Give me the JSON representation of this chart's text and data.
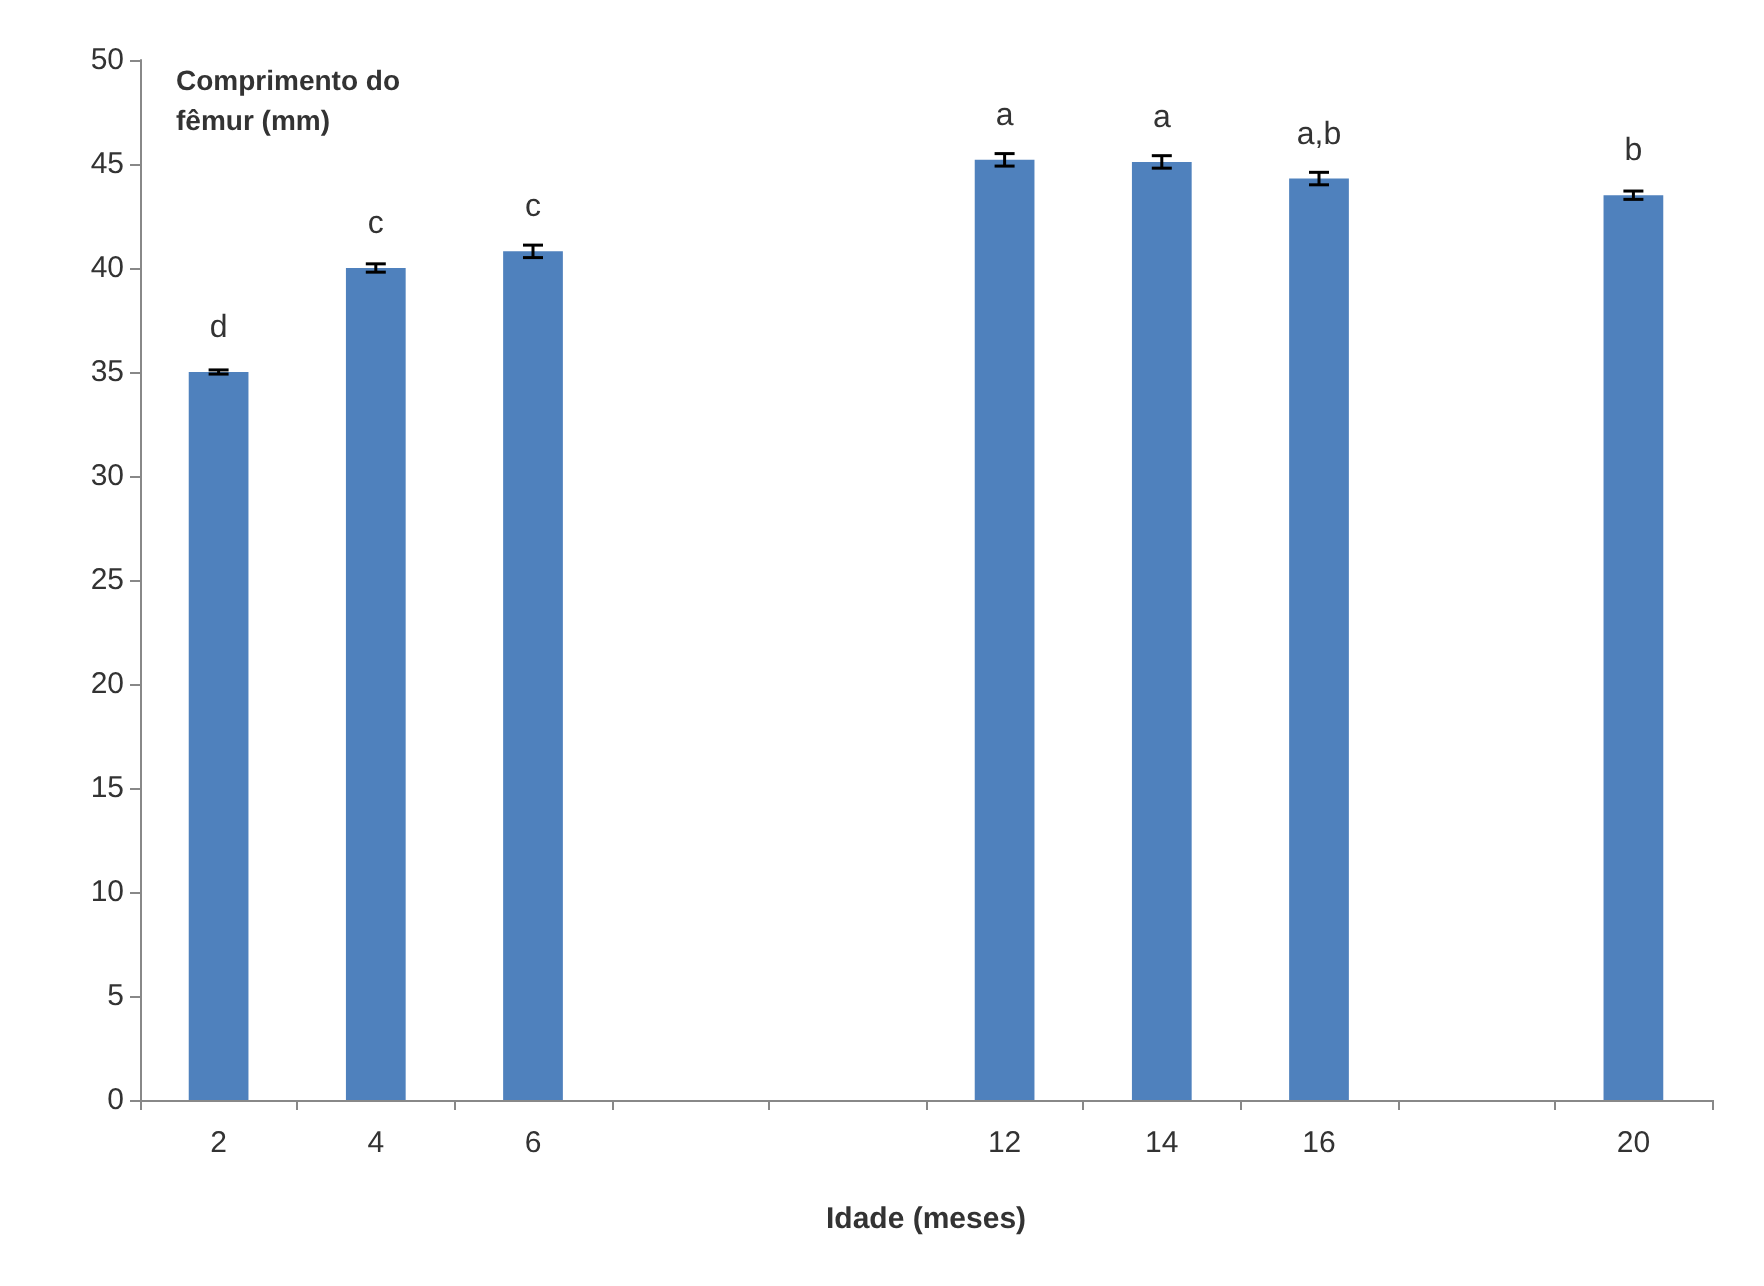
{
  "chart_data": {
    "type": "bar",
    "ylabel": "Comprimento do\nfêmur (mm)",
    "xlabel": "Idade (meses)",
    "categories": [
      "2",
      "4",
      "6",
      null,
      null,
      "12",
      "14",
      "16",
      null,
      "20"
    ],
    "series": [
      {
        "color": "#4f81bd",
        "values": [
          35,
          40,
          40.8,
          null,
          null,
          45.2,
          45.1,
          44.3,
          null,
          43.5
        ],
        "errors": [
          0.1,
          0.2,
          0.3,
          null,
          null,
          0.3,
          0.3,
          0.3,
          null,
          0.2
        ]
      }
    ],
    "ylim": [
      0,
      50
    ],
    "yticks": [
      0,
      5,
      10,
      15,
      20,
      25,
      30,
      35,
      40,
      45,
      50
    ],
    "grid": false,
    "annotations": [
      {
        "text": "d",
        "x": "2",
        "y": 35
      },
      {
        "text": "c",
        "x": "4",
        "y": 40
      },
      {
        "text": "c",
        "x": "6",
        "y": 40.8
      },
      {
        "text": "a",
        "x": "12",
        "y": 45.2
      },
      {
        "text": "a",
        "x": "14",
        "y": 45.1
      },
      {
        "text": "a,b",
        "x": "16",
        "y": 44.3
      },
      {
        "text": "b",
        "x": "20",
        "y": 43.5
      }
    ]
  }
}
